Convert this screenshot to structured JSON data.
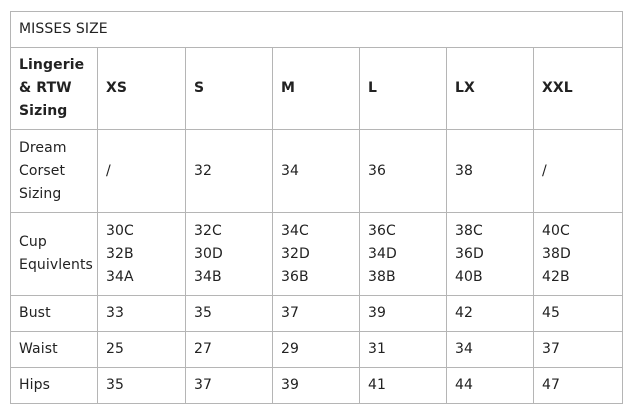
{
  "title": "MISSES SIZE",
  "header": {
    "label": [
      "Lingerie",
      "& RTW",
      "Sizing"
    ],
    "sizes": [
      "XS",
      "S",
      "M",
      "L",
      "LX",
      "XXL"
    ]
  },
  "rows": {
    "corset": {
      "label": [
        "Dream",
        "Corset",
        "Sizing"
      ],
      "values": [
        "/",
        "32",
        "34",
        "36",
        "38",
        "/"
      ]
    },
    "cup": {
      "label": [
        "Cup",
        "Equivlents"
      ],
      "values": [
        [
          "30C",
          "32B",
          "34A"
        ],
        [
          "32C",
          "30D",
          "34B"
        ],
        [
          "34C",
          "32D",
          "36B"
        ],
        [
          "36C",
          "34D",
          "38B"
        ],
        [
          "38C",
          "36D",
          "40B"
        ],
        [
          "40C",
          "38D",
          "42B"
        ]
      ]
    },
    "bust": {
      "label": "Bust",
      "values": [
        "33",
        "35",
        "37",
        "39",
        "42",
        "45"
      ]
    },
    "waist": {
      "label": "Waist",
      "values": [
        "25",
        "27",
        "29",
        "31",
        "34",
        "37"
      ]
    },
    "hips": {
      "label": "Hips",
      "values": [
        "35",
        "37",
        "39",
        "41",
        "44",
        "47"
      ]
    }
  }
}
